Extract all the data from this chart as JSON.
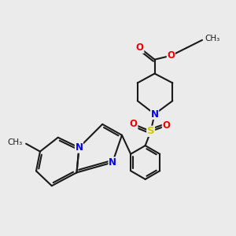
{
  "bg_color": "#ebebeb",
  "bond_color": "#1a1a1a",
  "bond_width": 1.5,
  "atom_colors": {
    "N": "#0000ee",
    "O": "#ee0000",
    "S": "#cccc00",
    "C": "#1a1a1a"
  },
  "font_size_atom": 8.5,
  "fig_size": [
    3.0,
    3.0
  ],
  "dpi": 100
}
